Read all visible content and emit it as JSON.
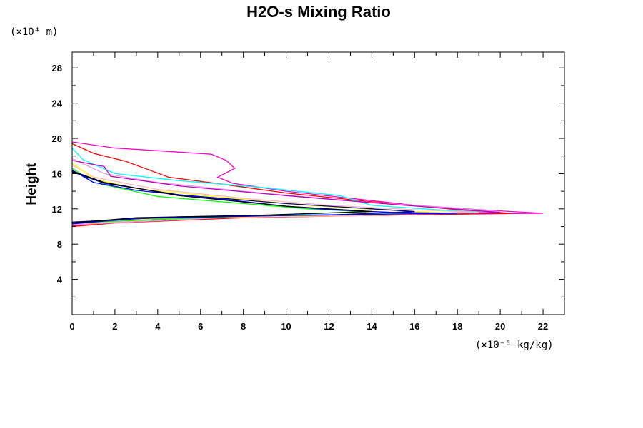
{
  "chart_data": {
    "type": "line",
    "title": "H2O-s Mixing Ratio",
    "xlabel": "",
    "xunit_label": "(×10⁻⁵ kg/kg)",
    "ylabel": "Height",
    "yunit_label": "(×10⁴ m)",
    "xlim": [
      0,
      23
    ],
    "ylim": [
      0,
      29.8
    ],
    "xticks": [
      "0",
      "2",
      "4",
      "6",
      "8",
      "10",
      "12",
      "14",
      "16",
      "18",
      "20",
      "22"
    ],
    "yticks": [
      "4",
      "8",
      "12",
      "16",
      "20",
      "24",
      "28"
    ],
    "grid": false,
    "series": [
      {
        "name": "magenta",
        "color": "#ff00c8",
        "points": [
          [
            0,
            19.6
          ],
          [
            2,
            18.9
          ],
          [
            4,
            18.6
          ],
          [
            6.5,
            18.2
          ],
          [
            7.2,
            17.5
          ],
          [
            7.6,
            16.6
          ],
          [
            6.8,
            15.6
          ],
          [
            7.5,
            14.9
          ],
          [
            10,
            14
          ],
          [
            13,
            13.2
          ],
          [
            16,
            12.4
          ],
          [
            19,
            11.9
          ],
          [
            22,
            11.5
          ],
          [
            18,
            11.4
          ],
          [
            12,
            11.2
          ],
          [
            6,
            10.9
          ],
          [
            2,
            10.5
          ],
          [
            0,
            10.1
          ]
        ]
      },
      {
        "name": "red",
        "color": "#ff0000",
        "points": [
          [
            0,
            19.4
          ],
          [
            1,
            18.3
          ],
          [
            2.5,
            17.4
          ],
          [
            3.5,
            16.5
          ],
          [
            4.5,
            15.6
          ],
          [
            7,
            14.8
          ],
          [
            10,
            13.8
          ],
          [
            14,
            12.8
          ],
          [
            18,
            11.9
          ],
          [
            20.5,
            11.5
          ],
          [
            15,
            11.3
          ],
          [
            8,
            11.0
          ],
          [
            2,
            10.4
          ],
          [
            0,
            10.0
          ]
        ]
      },
      {
        "name": "cyan",
        "color": "#00ffff",
        "points": [
          [
            0,
            18.9
          ],
          [
            0.5,
            17.6
          ],
          [
            2,
            16
          ],
          [
            5,
            15.2
          ],
          [
            9,
            14.4
          ],
          [
            12.5,
            13.5
          ],
          [
            14,
            12.4
          ],
          [
            17,
            11.9
          ],
          [
            19.5,
            11.6
          ],
          [
            14,
            11.4
          ],
          [
            8,
            11.1
          ],
          [
            2,
            10.6
          ],
          [
            0,
            10.2
          ]
        ]
      },
      {
        "name": "plum",
        "color": "#dda0dd",
        "points": [
          [
            0,
            17.7
          ],
          [
            1.5,
            16
          ],
          [
            4,
            15
          ],
          [
            8,
            14
          ],
          [
            13,
            12.9
          ],
          [
            17,
            12.2
          ],
          [
            20,
            11.7
          ],
          [
            15,
            11.4
          ],
          [
            8,
            11.1
          ],
          [
            0,
            10.2
          ]
        ]
      },
      {
        "name": "purple",
        "color": "#c000c0",
        "points": [
          [
            0,
            17.5
          ],
          [
            1.5,
            16.8
          ],
          [
            1.8,
            15.7
          ],
          [
            5,
            14.6
          ],
          [
            10,
            13.5
          ],
          [
            15,
            12.5
          ],
          [
            20,
            11.6
          ],
          [
            14,
            11.3
          ],
          [
            5,
            11
          ],
          [
            0,
            10.3
          ]
        ]
      },
      {
        "name": "pink",
        "color": "#ffb6c1",
        "points": [
          [
            0,
            17
          ],
          [
            1,
            15.6
          ],
          [
            4,
            14.2
          ],
          [
            8,
            13.2
          ],
          [
            12,
            12.4
          ],
          [
            16,
            11.9
          ],
          [
            19,
            11.6
          ],
          [
            13,
            11.2
          ],
          [
            6,
            11
          ],
          [
            0,
            10.3
          ]
        ]
      },
      {
        "name": "yellow",
        "color": "#ffff00",
        "points": [
          [
            0,
            17.2
          ],
          [
            1,
            15.4
          ],
          [
            3,
            14.3
          ],
          [
            7,
            13.3
          ],
          [
            11,
            12.4
          ],
          [
            15,
            11.8
          ],
          [
            18,
            11.5
          ],
          [
            10,
            11.2
          ],
          [
            4,
            10.9
          ],
          [
            0,
            10.3
          ]
        ]
      },
      {
        "name": "green",
        "color": "#00ff00",
        "points": [
          [
            0,
            16.6
          ],
          [
            1,
            15
          ],
          [
            4,
            13.4
          ],
          [
            8,
            12.6
          ],
          [
            11,
            12
          ],
          [
            13.5,
            11.7
          ],
          [
            10,
            11.3
          ],
          [
            6,
            11.0
          ],
          [
            0,
            10.4
          ]
        ]
      },
      {
        "name": "navy",
        "color": "#000080",
        "points": [
          [
            0,
            16.2
          ],
          [
            1.5,
            14.9
          ],
          [
            5,
            13.6
          ],
          [
            10,
            12.6
          ],
          [
            14,
            12
          ],
          [
            16,
            11.7
          ],
          [
            12,
            11.3
          ],
          [
            5,
            11.1
          ],
          [
            0,
            10.5
          ]
        ]
      },
      {
        "name": "blue",
        "color": "#0000ff",
        "points": [
          [
            0,
            16.4
          ],
          [
            1,
            15
          ],
          [
            3,
            14.1
          ],
          [
            7,
            13.1
          ],
          [
            10,
            12.3
          ],
          [
            12,
            11.9
          ],
          [
            15,
            11.6
          ],
          [
            18,
            11.5
          ],
          [
            11,
            11.3
          ],
          [
            3,
            10.9
          ],
          [
            0,
            10.3
          ]
        ]
      },
      {
        "name": "black",
        "color": "#000000",
        "points": [
          [
            0,
            16.3
          ],
          [
            1.5,
            15
          ],
          [
            5,
            13.5
          ],
          [
            10,
            12.3
          ],
          [
            14,
            11.7
          ],
          [
            9,
            11.3
          ],
          [
            3,
            11.0
          ],
          [
            0,
            10.4
          ]
        ]
      }
    ]
  }
}
